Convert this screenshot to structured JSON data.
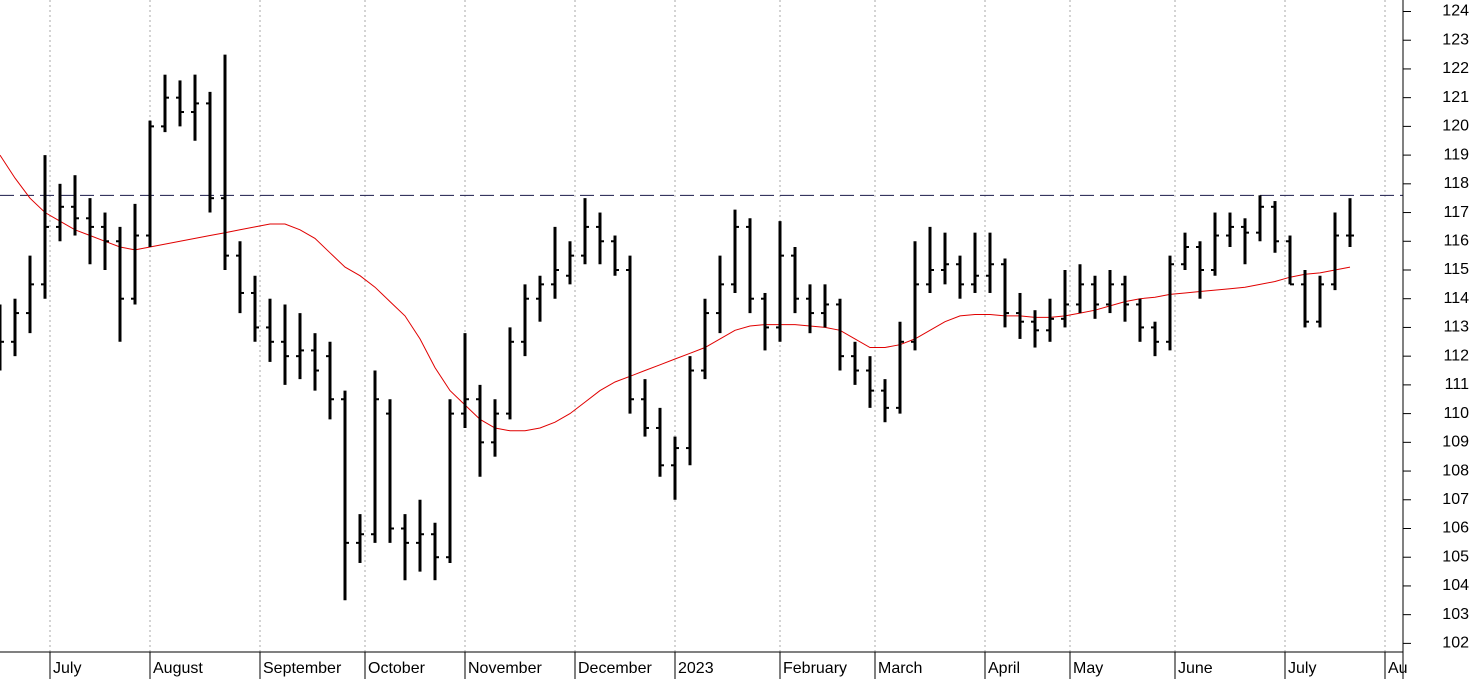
{
  "chart_data": {
    "type": "ohlc",
    "x": [
      0,
      3,
      6,
      9,
      12,
      15,
      18,
      21,
      24,
      27,
      30,
      33,
      36,
      39,
      42,
      45,
      48,
      51,
      54,
      57,
      60,
      63,
      66,
      69,
      72,
      75,
      78,
      81,
      84,
      87,
      90,
      93,
      96,
      99,
      102,
      105,
      108,
      111,
      114,
      117,
      120,
      123,
      126,
      129,
      132,
      135,
      138,
      141,
      144,
      147,
      150,
      153,
      156,
      159,
      162,
      165,
      168,
      171,
      174,
      177,
      180,
      183,
      186,
      189,
      192,
      195,
      198,
      201,
      204,
      207,
      210,
      213,
      216,
      219,
      222,
      225,
      228,
      231,
      234,
      237,
      240,
      243,
      246,
      249,
      252,
      255,
      258,
      261,
      264,
      267,
      270
    ],
    "values": [
      [
        112,
        113.8,
        111.5,
        112.5
      ],
      [
        112.5,
        114,
        112,
        113.5
      ],
      [
        113.5,
        115.5,
        112.8,
        114.5
      ],
      [
        114.5,
        119,
        114,
        116.5
      ],
      [
        116.5,
        118,
        116,
        117.2
      ],
      [
        117.2,
        118.3,
        116.2,
        116.8
      ],
      [
        116.8,
        117.5,
        115.2,
        116.5
      ],
      [
        116.5,
        117,
        115,
        116
      ],
      [
        116,
        116.5,
        112.5,
        114
      ],
      [
        114,
        117.3,
        113.8,
        116.2
      ],
      [
        116.2,
        120.2,
        115.8,
        120
      ],
      [
        120,
        121.8,
        119.8,
        121
      ],
      [
        121,
        121.6,
        120,
        120.5
      ],
      [
        120.5,
        121.8,
        119.5,
        120.8
      ],
      [
        120.8,
        121.2,
        117,
        117.5
      ],
      [
        117.5,
        122.5,
        115,
        115.5
      ],
      [
        115.5,
        116,
        113.5,
        114.2
      ],
      [
        114.2,
        114.8,
        112.5,
        113
      ],
      [
        113,
        114,
        111.8,
        112.5
      ],
      [
        112.5,
        113.8,
        111,
        112
      ],
      [
        112,
        113.5,
        111.2,
        112.2
      ],
      [
        112.2,
        112.8,
        110.8,
        111.5
      ],
      [
        112,
        112.5,
        109.8,
        110.5
      ],
      [
        110.5,
        110.8,
        103.5,
        105.5
      ],
      [
        105.5,
        106.5,
        104.8,
        105.8
      ],
      [
        105.8,
        111.5,
        105.5,
        110.5
      ],
      [
        110,
        110.5,
        105.5,
        106
      ],
      [
        106,
        106.5,
        104.2,
        105.5
      ],
      [
        105.5,
        107,
        104.5,
        105.8
      ],
      [
        105.8,
        106.2,
        104.2,
        105
      ],
      [
        105,
        110.5,
        104.8,
        110
      ],
      [
        110,
        112.8,
        109.5,
        110.5
      ],
      [
        110.5,
        111,
        107.8,
        109
      ],
      [
        109,
        110.5,
        108.5,
        110
      ],
      [
        110,
        113,
        109.8,
        112.5
      ],
      [
        112.5,
        114.5,
        112,
        114
      ],
      [
        114,
        114.8,
        113.2,
        114.5
      ],
      [
        114.5,
        116.5,
        114,
        115
      ],
      [
        114.8,
        116,
        114.5,
        115.5
      ],
      [
        115.5,
        117.5,
        115.2,
        116.5
      ],
      [
        116.5,
        117,
        115.2,
        116
      ],
      [
        116,
        116.2,
        114.8,
        115
      ],
      [
        115,
        115.5,
        110,
        110.5
      ],
      [
        110.5,
        111.2,
        109.2,
        109.5
      ],
      [
        109.5,
        110.2,
        107.8,
        108.2
      ],
      [
        108.2,
        109.2,
        107,
        108.8
      ],
      [
        108.8,
        112,
        108.2,
        111.5
      ],
      [
        111.5,
        114,
        111.2,
        113.5
      ],
      [
        113.5,
        115.5,
        112.8,
        114.5
      ],
      [
        114.5,
        117.1,
        114.2,
        116.5
      ],
      [
        116.5,
        116.8,
        113.5,
        114
      ],
      [
        114,
        114.2,
        112.2,
        113
      ],
      [
        113,
        116.7,
        112.5,
        115.5
      ],
      [
        115.5,
        115.8,
        113.5,
        114
      ],
      [
        114,
        114.5,
        112.8,
        113.5
      ],
      [
        113.5,
        114.5,
        113,
        113.8
      ],
      [
        113.8,
        114,
        111.5,
        112
      ],
      [
        112,
        112.5,
        111,
        111.5
      ],
      [
        111.5,
        112,
        110.2,
        110.8
      ],
      [
        110.8,
        111.2,
        109.7,
        110.2
      ],
      [
        110.2,
        113.2,
        110,
        112.5
      ],
      [
        112.5,
        116,
        112.2,
        114.5
      ],
      [
        114.5,
        116.5,
        114.2,
        115
      ],
      [
        115,
        116.3,
        114.5,
        115.2
      ],
      [
        115.2,
        115.5,
        114,
        114.5
      ],
      [
        114.5,
        116.3,
        114.2,
        114.8
      ],
      [
        114.8,
        116.3,
        114.2,
        115.2
      ],
      [
        115.2,
        115.4,
        113,
        113.5
      ],
      [
        113.5,
        114.2,
        112.6,
        113.2
      ],
      [
        113.2,
        113.6,
        112.3,
        112.9
      ],
      [
        112.9,
        114,
        112.5,
        113.3
      ],
      [
        113.3,
        115,
        113,
        113.8
      ],
      [
        113.8,
        115.2,
        113.5,
        114.5
      ],
      [
        114.5,
        114.8,
        113.3,
        113.8
      ],
      [
        113.8,
        115,
        113.5,
        114.5
      ],
      [
        114.5,
        114.8,
        113.2,
        113.8
      ],
      [
        113.8,
        114,
        112.5,
        113
      ],
      [
        113,
        113.2,
        112,
        112.5
      ],
      [
        112.5,
        115.5,
        112.2,
        115.2
      ],
      [
        115.2,
        116.3,
        115,
        115.8
      ],
      [
        115.8,
        116,
        114,
        115
      ],
      [
        115,
        117,
        114.8,
        116.2
      ],
      [
        116.2,
        117,
        115.8,
        116.5
      ],
      [
        116.5,
        116.8,
        115.2,
        116.3
      ],
      [
        116.3,
        117.6,
        116,
        117.2
      ],
      [
        117.2,
        117.4,
        115.6,
        116
      ],
      [
        116,
        116.2,
        114.5,
        114.5
      ],
      [
        114.5,
        115,
        113,
        113.2
      ],
      [
        113.2,
        114.8,
        113,
        114.5
      ],
      [
        114.5,
        117,
        114.3,
        116.2
      ],
      [
        116.2,
        117.5,
        115.8,
        116.2
      ]
    ],
    "bar_color": "#000000",
    "moving_average": {
      "color": "#e00000",
      "values": [
        119,
        118.2,
        117.5,
        117,
        116.7,
        116.4,
        116.2,
        116,
        115.8,
        115.7,
        115.8,
        115.9,
        116,
        116.1,
        116.2,
        116.3,
        116.4,
        116.5,
        116.6,
        116.6,
        116.4,
        116.1,
        115.6,
        115.1,
        114.8,
        114.4,
        113.9,
        113.4,
        112.6,
        111.6,
        110.8,
        110.3,
        109.8,
        109.5,
        109.4,
        109.4,
        109.5,
        109.7,
        110,
        110.4,
        110.8,
        111.1,
        111.3,
        111.5,
        111.7,
        111.9,
        112.1,
        112.3,
        112.6,
        112.9,
        113.05,
        113.1,
        113.1,
        113.1,
        113.05,
        113,
        112.9,
        112.6,
        112.3,
        112.3,
        112.4,
        112.6,
        112.9,
        113.2,
        113.4,
        113.45,
        113.45,
        113.4,
        113.4,
        113.35,
        113.35,
        113.4,
        113.5,
        113.6,
        113.75,
        113.9,
        114,
        114.05,
        114.15,
        114.2,
        114.25,
        114.3,
        114.35,
        114.4,
        114.5,
        114.6,
        114.75,
        114.85,
        114.9,
        115,
        115.1
      ]
    },
    "hline": {
      "value": 117.6,
      "color": "#1a1a4a"
    },
    "xlim": [
      0,
      280.6
    ],
    "ylim": [
      101.7,
      124.4
    ],
    "xticks": [
      {
        "value": 10,
        "label": "July"
      },
      {
        "value": 30,
        "label": "August"
      },
      {
        "value": 52,
        "label": "September"
      },
      {
        "value": 73,
        "label": "October"
      },
      {
        "value": 93,
        "label": "November"
      },
      {
        "value": 115,
        "label": "December"
      },
      {
        "value": 135,
        "label": "2023"
      },
      {
        "value": 156,
        "label": "February"
      },
      {
        "value": 175,
        "label": "March"
      },
      {
        "value": 197,
        "label": "April"
      },
      {
        "value": 214,
        "label": "May"
      },
      {
        "value": 235,
        "label": "June"
      },
      {
        "value": 257,
        "label": "July"
      },
      {
        "value": 277,
        "label": "Au"
      }
    ],
    "yticks": [
      102,
      103,
      104,
      105,
      106,
      107,
      108,
      109,
      110,
      111,
      112,
      113,
      114,
      115,
      116,
      117,
      118,
      119,
      120,
      121,
      122,
      123,
      124
    ],
    "grid": true
  }
}
